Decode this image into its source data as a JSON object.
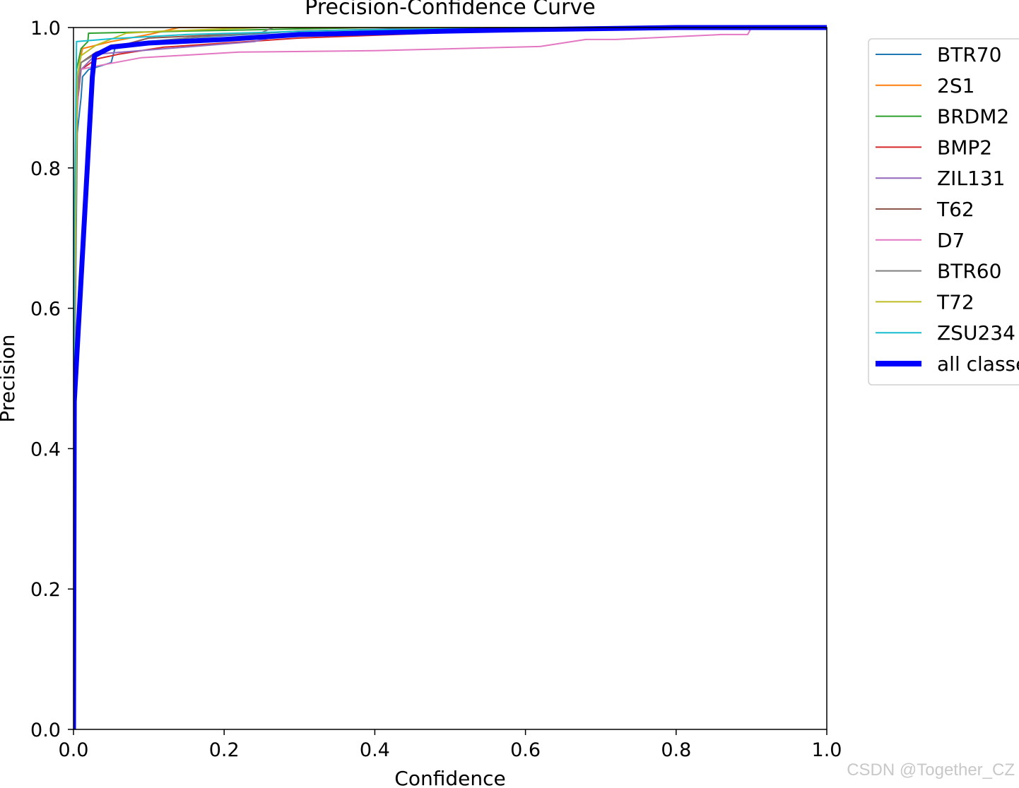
{
  "chart_data": {
    "type": "line",
    "title": "Precision-Confidence Curve",
    "xlabel": "Confidence",
    "ylabel": "Precision",
    "xlim": [
      0.0,
      1.0
    ],
    "ylim": [
      0.0,
      1.0
    ],
    "xticks": [
      "0.0",
      "0.2",
      "0.4",
      "0.6",
      "0.8",
      "1.0"
    ],
    "yticks": [
      "0.0",
      "0.2",
      "0.4",
      "0.6",
      "0.8",
      "1.0"
    ],
    "grid": false,
    "legend_position": "outside-right",
    "series": [
      {
        "name": "BTR70",
        "color": "#1f77b4",
        "width": 2,
        "points": [
          [
            0.0,
            0.0
          ],
          [
            0.001,
            0.45
          ],
          [
            0.005,
            0.85
          ],
          [
            0.01,
            0.9
          ],
          [
            0.012,
            0.93
          ],
          [
            0.02,
            0.94
          ],
          [
            0.05,
            0.95
          ],
          [
            0.055,
            0.97
          ],
          [
            0.15,
            0.985
          ],
          [
            0.3,
            0.995
          ],
          [
            0.5,
            1.0
          ],
          [
            1.0,
            1.0
          ]
        ]
      },
      {
        "name": "2S1",
        "color": "#ff7f0e",
        "width": 2,
        "points": [
          [
            0.0,
            0.0
          ],
          [
            0.001,
            0.5
          ],
          [
            0.004,
            0.9
          ],
          [
            0.008,
            0.95
          ],
          [
            0.012,
            0.97
          ],
          [
            0.05,
            0.98
          ],
          [
            0.1,
            0.99
          ],
          [
            0.14,
            1.0
          ],
          [
            1.0,
            1.0
          ]
        ]
      },
      {
        "name": "BRDM2",
        "color": "#2ca02c",
        "width": 2,
        "points": [
          [
            0.0,
            0.0
          ],
          [
            0.001,
            0.6
          ],
          [
            0.004,
            0.94
          ],
          [
            0.01,
            0.97
          ],
          [
            0.019,
            0.98
          ],
          [
            0.02,
            0.992
          ],
          [
            0.15,
            0.995
          ],
          [
            0.4,
            1.0
          ],
          [
            1.0,
            1.0
          ]
        ]
      },
      {
        "name": "BMP2",
        "color": "#d62728",
        "width": 2,
        "points": [
          [
            0.0,
            0.0
          ],
          [
            0.001,
            0.5
          ],
          [
            0.004,
            0.88
          ],
          [
            0.01,
            0.94
          ],
          [
            0.03,
            0.955
          ],
          [
            0.06,
            0.962
          ],
          [
            0.12,
            0.972
          ],
          [
            0.3,
            0.985
          ],
          [
            0.5,
            0.993
          ],
          [
            0.7,
            1.0
          ],
          [
            1.0,
            1.0
          ]
        ]
      },
      {
        "name": "ZIL131",
        "color": "#9467bd",
        "width": 2,
        "points": [
          [
            0.0,
            0.0
          ],
          [
            0.001,
            0.5
          ],
          [
            0.005,
            0.9
          ],
          [
            0.01,
            0.94
          ],
          [
            0.03,
            0.962
          ],
          [
            0.1,
            0.968
          ],
          [
            0.24,
            0.98
          ],
          [
            0.28,
            0.99
          ],
          [
            0.5,
            0.996
          ],
          [
            1.0,
            1.0
          ]
        ]
      },
      {
        "name": "T62",
        "color": "#8c564b",
        "width": 2,
        "points": [
          [
            0.0,
            0.0
          ],
          [
            0.001,
            0.55
          ],
          [
            0.005,
            0.92
          ],
          [
            0.01,
            0.95
          ],
          [
            0.03,
            0.965
          ],
          [
            0.1,
            0.985
          ],
          [
            0.3,
            0.995
          ],
          [
            0.55,
            1.0
          ],
          [
            1.0,
            1.0
          ]
        ]
      },
      {
        "name": "D7",
        "color": "#e377c2",
        "width": 2,
        "points": [
          [
            0.0,
            0.0
          ],
          [
            0.001,
            0.45
          ],
          [
            0.004,
            0.86
          ],
          [
            0.008,
            0.94
          ],
          [
            0.03,
            0.945
          ],
          [
            0.09,
            0.957
          ],
          [
            0.22,
            0.965
          ],
          [
            0.4,
            0.967
          ],
          [
            0.62,
            0.973
          ],
          [
            0.68,
            0.983
          ],
          [
            0.72,
            0.983
          ],
          [
            0.86,
            0.99
          ],
          [
            0.895,
            0.99
          ],
          [
            0.9,
            1.0
          ],
          [
            1.0,
            1.0
          ]
        ]
      },
      {
        "name": "BTR60",
        "color": "#7f7f7f",
        "width": 2,
        "points": [
          [
            0.0,
            0.0
          ],
          [
            0.001,
            0.5
          ],
          [
            0.005,
            0.9
          ],
          [
            0.01,
            0.95
          ],
          [
            0.05,
            0.975
          ],
          [
            0.15,
            0.985
          ],
          [
            0.25,
            0.993
          ],
          [
            0.265,
            1.0
          ],
          [
            1.0,
            1.0
          ]
        ]
      },
      {
        "name": "T72",
        "color": "#bcbd22",
        "width": 2,
        "points": [
          [
            0.0,
            0.0
          ],
          [
            0.001,
            0.55
          ],
          [
            0.005,
            0.93
          ],
          [
            0.01,
            0.96
          ],
          [
            0.03,
            0.975
          ],
          [
            0.07,
            0.992
          ],
          [
            0.12,
            0.995
          ],
          [
            0.25,
            1.0
          ],
          [
            1.0,
            1.0
          ]
        ]
      },
      {
        "name": "ZSU234",
        "color": "#17becf",
        "width": 2,
        "points": [
          [
            0.0,
            0.0
          ],
          [
            0.001,
            0.7
          ],
          [
            0.004,
            0.98
          ],
          [
            0.05,
            0.984
          ],
          [
            0.15,
            0.99
          ],
          [
            0.35,
            0.996
          ],
          [
            0.6,
            1.0
          ],
          [
            1.0,
            1.0
          ]
        ]
      },
      {
        "name": "all classes",
        "color": "#0000ff",
        "width": 7,
        "points": [
          [
            0.0,
            0.0
          ],
          [
            0.001,
            0.467
          ],
          [
            0.025,
            0.93
          ],
          [
            0.028,
            0.96
          ],
          [
            0.05,
            0.972
          ],
          [
            0.1,
            0.978
          ],
          [
            0.2,
            0.983
          ],
          [
            0.3,
            0.99
          ],
          [
            0.5,
            0.995
          ],
          [
            0.6,
            0.997
          ],
          [
            0.8,
            1.0
          ],
          [
            1.0,
            1.0
          ]
        ]
      }
    ]
  },
  "watermark": "CSDN @Together_CZ"
}
